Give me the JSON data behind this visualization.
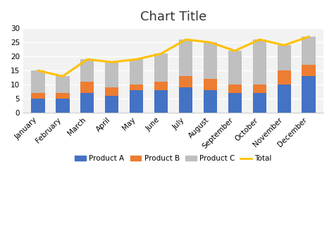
{
  "title": "Chart Title",
  "categories": [
    "January",
    "February",
    "March",
    "April",
    "May",
    "June",
    "July",
    "August",
    "September",
    "October",
    "November",
    "December"
  ],
  "product_a": [
    5,
    5,
    7,
    6,
    8,
    8,
    9,
    8,
    7,
    7,
    10,
    13
  ],
  "product_b": [
    2,
    2,
    4,
    3,
    2,
    3,
    4,
    4,
    3,
    3,
    5,
    4
  ],
  "product_c": [
    8,
    6,
    8,
    9,
    9,
    10,
    13,
    13,
    12,
    16,
    9,
    10
  ],
  "total": [
    15,
    13,
    19,
    18,
    19,
    21,
    26,
    25,
    22,
    26,
    24,
    27
  ],
  "color_a": "#4472C4",
  "color_b": "#ED7D31",
  "color_c": "#BFBFBF",
  "color_total": "#FFC000",
  "ylim": [
    0,
    30
  ],
  "yticks": [
    0,
    5,
    10,
    15,
    20,
    25,
    30
  ],
  "background_color": "#ffffff",
  "plot_bg_color": "#f2f2f2",
  "grid_color": "#ffffff",
  "title_fontsize": 13,
  "tick_fontsize": 7.5,
  "legend_labels": [
    "Product A",
    "Product B",
    "Product C",
    "Total"
  ],
  "bar_width": 0.55
}
